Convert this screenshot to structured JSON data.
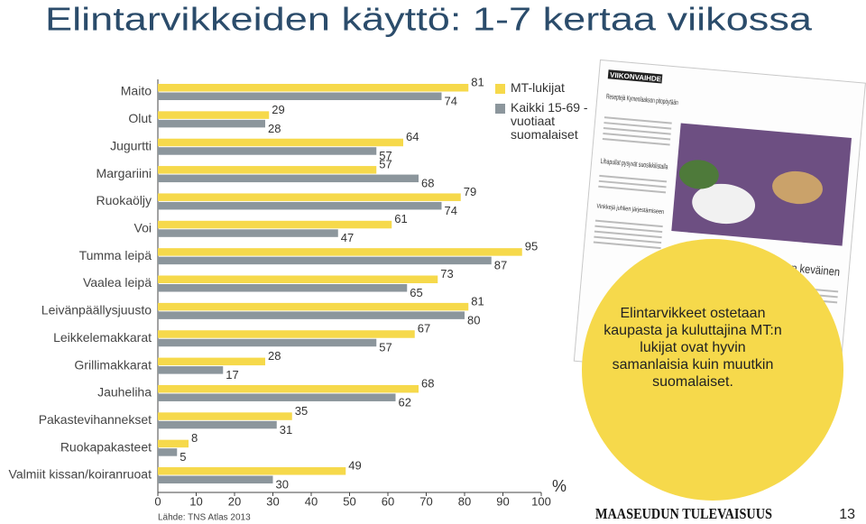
{
  "chart_data": {
    "type": "bar",
    "orientation": "horizontal",
    "title": "Elintarvikkeiden käyttö: 1-7 kertaa viikossa",
    "categories": [
      "Maito",
      "Olut",
      "Jugurtti",
      "Margariini",
      "Ruokaöljy",
      "Voi",
      "Tumma leipä",
      "Vaalea leipä",
      "Leivänpäällysjuusto",
      "Leikkelemakkarat",
      "Grillimakkarat",
      "Jauheliha",
      "Pakastevihannekset",
      "Ruokapakasteet",
      "Valmiit kissan/koiranruoat"
    ],
    "series": [
      {
        "name": "MT-lukijat",
        "color": "#f6d94b",
        "values": [
          81,
          29,
          64,
          57,
          79,
          61,
          95,
          73,
          81,
          67,
          28,
          68,
          35,
          8,
          49
        ]
      },
      {
        "name": "Kaikki 15-69 -vuotiaat suomalaiset",
        "color": "#8c969c",
        "values": [
          74,
          28,
          57,
          68,
          74,
          47,
          87,
          65,
          80,
          57,
          17,
          62,
          31,
          5,
          30
        ]
      }
    ],
    "xlim": [
      0,
      100
    ],
    "xticks": [
      0,
      10,
      20,
      30,
      40,
      50,
      60,
      70,
      80,
      90,
      100
    ],
    "unit_label": "%",
    "source": "Lähde: TNS Atlas 2013",
    "annotation": "Elintarvikkeet ostetaan kaupasta ja kuluttajina MT:n lukijat ovat hyvin samanlaisia kuin muutkin suomalaiset."
  },
  "newspaper": {
    "section": "VIIKONVAIHDE",
    "headlines": [
      "Reseptejä Kymenlaakson pitopöytään",
      "Lihapullat pysyvät suosikkilistalla",
      "Vinkkejä juhlien järjestämiseen",
      "Pääsiäisen makumaailma on keväinen"
    ]
  },
  "footer": {
    "publication": "MAASEUDUN TULEVAISUUS",
    "page": "13"
  }
}
